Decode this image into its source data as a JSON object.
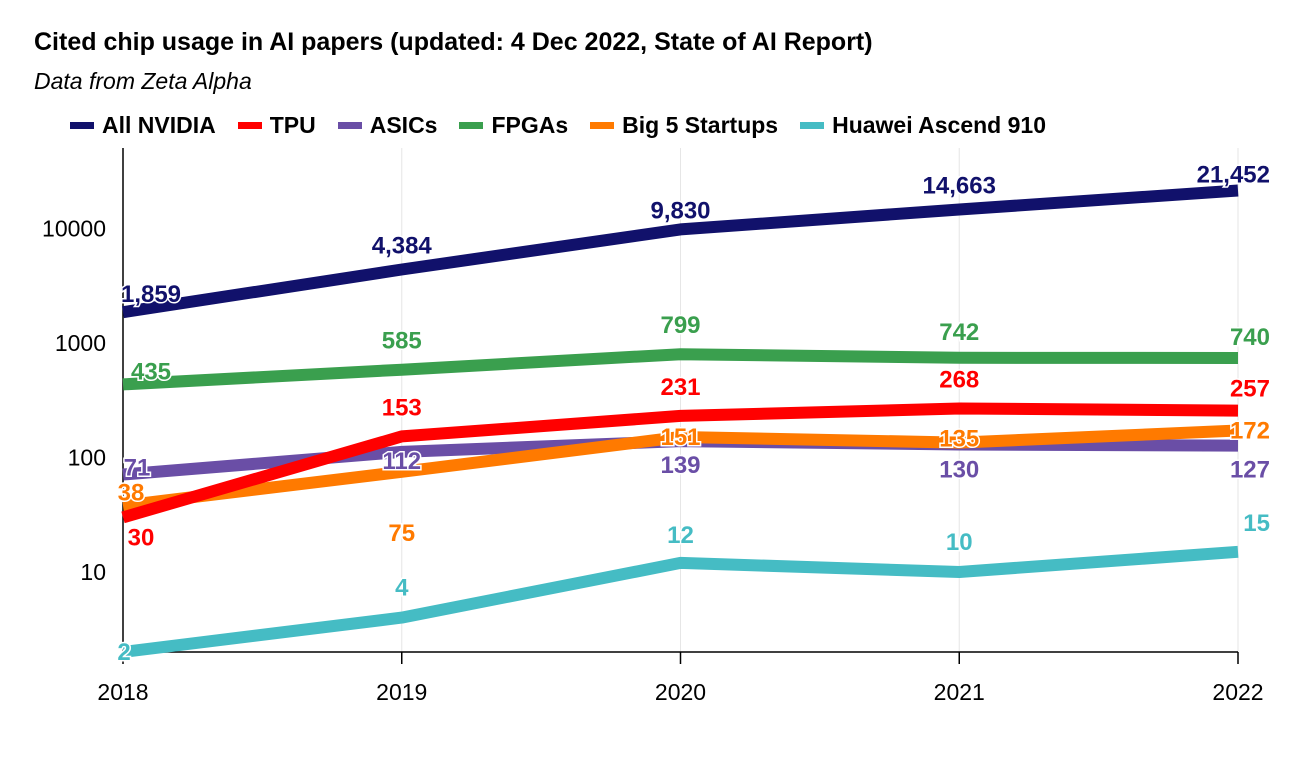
{
  "chart_data": {
    "type": "line",
    "title": "Cited chip usage in AI papers (updated: 4 Dec 2022, State of AI Report)",
    "subtitle": "Data from Zeta Alpha",
    "y_scale": "log",
    "ylim": [
      2,
      50000
    ],
    "y_ticks": [
      10,
      100,
      1000,
      10000
    ],
    "grid": true,
    "legend_position": "top",
    "categories": [
      "2018",
      "2019",
      "2020",
      "2021",
      "2022"
    ],
    "series": [
      {
        "name": "All NVIDIA",
        "color": "#11116b",
        "values": [
          1859,
          4384,
          9830,
          14663,
          21452
        ],
        "labels": [
          "1,859",
          "4,384",
          "9,830",
          "14,663",
          "21,452"
        ]
      },
      {
        "name": "TPU",
        "color": "#ff0000",
        "values": [
          30,
          153,
          231,
          268,
          257
        ],
        "labels": [
          "30",
          "153",
          "231",
          "268",
          "257"
        ]
      },
      {
        "name": "ASICs",
        "color": "#6a4ea6",
        "values": [
          71,
          112,
          139,
          130,
          127
        ],
        "labels": [
          "71",
          "112",
          "139",
          "130",
          "127"
        ]
      },
      {
        "name": "FPGAs",
        "color": "#3a9f4e",
        "values": [
          435,
          585,
          799,
          742,
          740
        ],
        "labels": [
          "435",
          "585",
          "799",
          "742",
          "740"
        ]
      },
      {
        "name": "Big 5 Startups",
        "color": "#ff7a00",
        "values": [
          38,
          75,
          151,
          135,
          172
        ],
        "labels": [
          "38",
          "75",
          "151",
          "135",
          "172"
        ]
      },
      {
        "name": "Huawei Ascend 910",
        "color": "#45bcc4",
        "values": [
          2,
          4,
          12,
          10,
          15
        ],
        "labels": [
          "2",
          "4",
          "12",
          "10",
          "15"
        ]
      }
    ]
  }
}
